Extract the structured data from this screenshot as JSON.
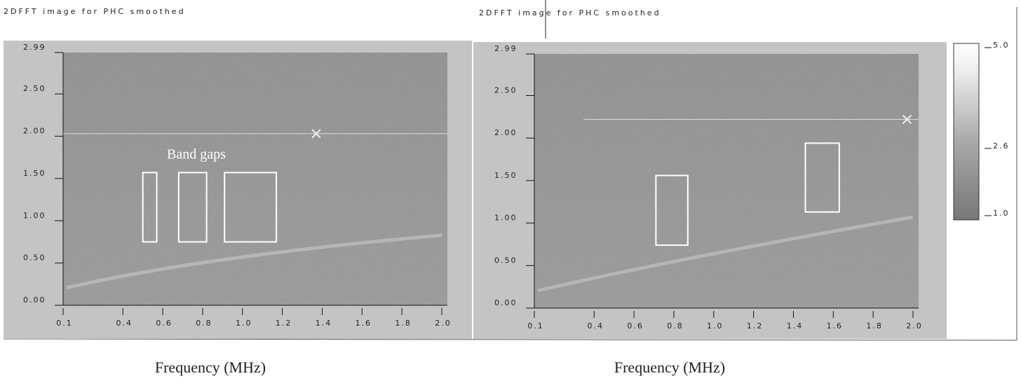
{
  "chart_data": [
    {
      "type": "heatmap",
      "title": "2DFFT image for PHC smoothed",
      "x_label": "Frequency (MHz)",
      "xlim": [
        0.1,
        2.0
      ],
      "ylim": [
        0,
        2.99
      ],
      "xticks": [
        0.1,
        0.4,
        0.6,
        0.8,
        {
          "value": 1,
          "label": "1.0"
        },
        1.2,
        1.4,
        1.6,
        1.8,
        {
          "value": 2,
          "label": "2.0"
        }
      ],
      "yticks": [
        {
          "value": 0,
          "label": "0.00"
        },
        {
          "value": 0.5,
          "label": "0.50"
        },
        {
          "value": 1,
          "label": "1.00"
        },
        {
          "value": 1.5,
          "label": "1.50"
        },
        {
          "value": 2,
          "label": "2.00"
        },
        {
          "value": 2.5,
          "label": "2.50"
        },
        2.99
      ],
      "cursor": {
        "x": 1.37,
        "y": 2.03
      },
      "annotations": [
        "Band gaps"
      ],
      "regions": [
        {
          "x": [
            0.5,
            0.57
          ],
          "y": [
            0.75,
            1.57
          ]
        },
        {
          "x": [
            0.68,
            0.82
          ],
          "y": [
            0.75,
            1.57
          ]
        },
        {
          "x": [
            0.91,
            1.17
          ],
          "y": [
            0.75,
            1.57
          ]
        }
      ]
    },
    {
      "type": "heatmap",
      "title": "2DFFT image for PHC smoothed",
      "x_label": "Frequency (MHz)",
      "xlim": [
        0.1,
        2.0
      ],
      "ylim": [
        0,
        2.99
      ],
      "xticks": [
        0.1,
        0.4,
        0.6,
        0.8,
        {
          "value": 1,
          "label": "1.0"
        },
        1.2,
        1.4,
        1.6,
        1.8,
        {
          "value": 2,
          "label": "2.0"
        }
      ],
      "yticks": [
        {
          "value": 0,
          "label": "0.00"
        },
        {
          "value": 0.5,
          "label": "0.50"
        },
        {
          "value": 1,
          "label": "1.00"
        },
        {
          "value": 1.5,
          "label": "1.50"
        },
        {
          "value": 2,
          "label": "2.00"
        },
        {
          "value": 2.5,
          "label": "2.50"
        },
        2.99
      ],
      "cursor": {
        "x": 1.97,
        "y": 2.22
      },
      "regions": [
        {
          "x": [
            0.71,
            0.87
          ],
          "y": [
            0.74,
            1.56
          ]
        },
        {
          "x": [
            1.46,
            1.63
          ],
          "y": [
            1.13,
            1.94
          ]
        }
      ],
      "colorbar": {
        "lim": [
          1,
          5
        ],
        "ticks": [
          {
            "value": 1,
            "label": "1.0"
          },
          2.6,
          {
            "value": 5,
            "label": "5.0"
          }
        ]
      }
    }
  ]
}
